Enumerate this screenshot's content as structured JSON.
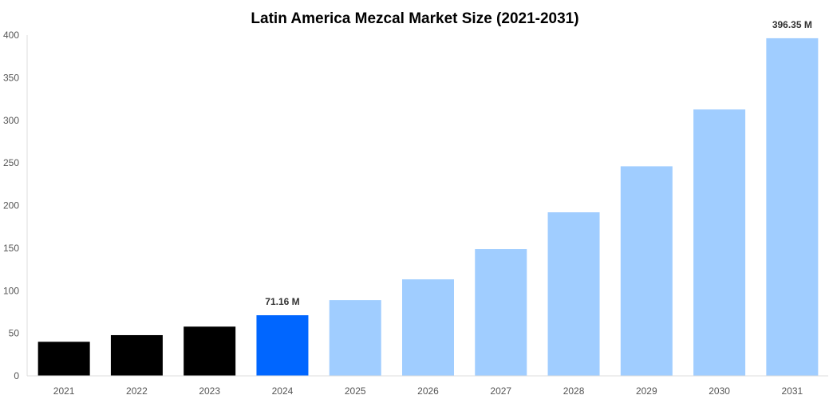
{
  "chart_data": {
    "type": "bar",
    "title": "Latin America Mezcal Market Size (2021-2031)",
    "xlabel": "",
    "ylabel": "",
    "categories": [
      "2021",
      "2022",
      "2023",
      "2024",
      "2025",
      "2026",
      "2027",
      "2028",
      "2029",
      "2030",
      "2031"
    ],
    "values": [
      40.0,
      47.8,
      57.8,
      71.16,
      88.9,
      113.3,
      148.9,
      192.0,
      246.0,
      312.7,
      396.35
    ],
    "data_labels": {
      "3": "71.16 M",
      "10": "396.35 M"
    },
    "ylim": [
      0,
      400
    ],
    "yticks": [
      0,
      50,
      100,
      150,
      200,
      250,
      300,
      350,
      400
    ],
    "grid": false,
    "bar_colors": [
      "#000000",
      "#000000",
      "#000000",
      "#0066ff",
      "#a0cdff",
      "#a0cdff",
      "#a0cdff",
      "#a0cdff",
      "#a0cdff",
      "#a0cdff",
      "#a0cdff"
    ],
    "legend": "none"
  }
}
